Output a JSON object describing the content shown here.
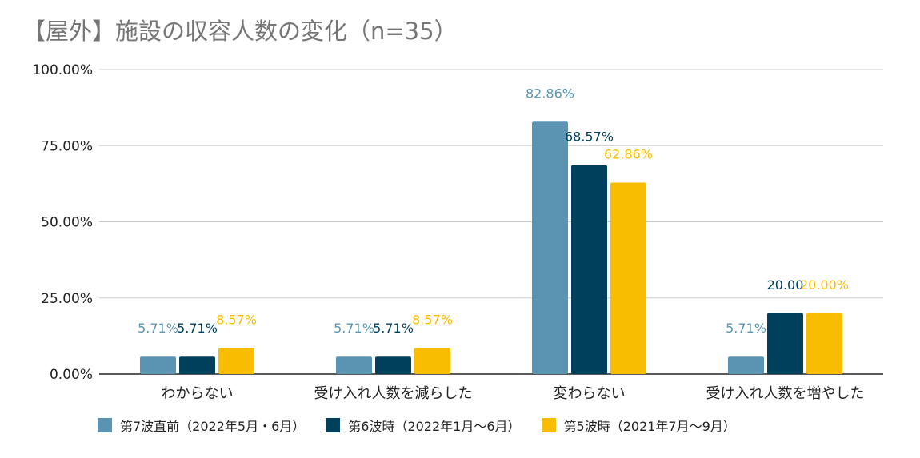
{
  "title": "【屋外】施設の収容人数の変化（n=35）",
  "colors": {
    "series1": "#5a94b2",
    "series2": "#01405c",
    "series3": "#f9bd00",
    "grid": "#cccccc",
    "axis": "#222222"
  },
  "chart_data": {
    "type": "bar",
    "title": "【屋外】施設の収容人数の変化（n=35）",
    "categories": [
      "わからない",
      "受け入れ人数を減らした",
      "変わらない",
      "受け入れ人数を増やした"
    ],
    "y_ticks": [
      "0.00%",
      "25.00%",
      "50.00%",
      "75.00%",
      "100.00%"
    ],
    "ylim": [
      0,
      100
    ],
    "grid": true,
    "legend_position": "bottom",
    "series": [
      {
        "name": "第7波直前（2022年5月・6月）",
        "values": [
          5.71,
          5.71,
          82.86,
          5.71
        ],
        "labels": [
          "5.71%",
          "5.71%",
          "82.86%",
          "5.71%"
        ]
      },
      {
        "name": "第6波時（2022年1月〜6月）",
        "values": [
          5.71,
          5.71,
          68.57,
          20.0
        ],
        "labels": [
          "5.71%",
          "5.71%",
          "68.57%",
          "20.00"
        ]
      },
      {
        "name": "第5波時（2021年7月〜9月）",
        "values": [
          8.57,
          8.57,
          62.86,
          20.0
        ],
        "labels": [
          "8.57%",
          "8.57%",
          "62.86%",
          "20.00%"
        ]
      }
    ]
  }
}
